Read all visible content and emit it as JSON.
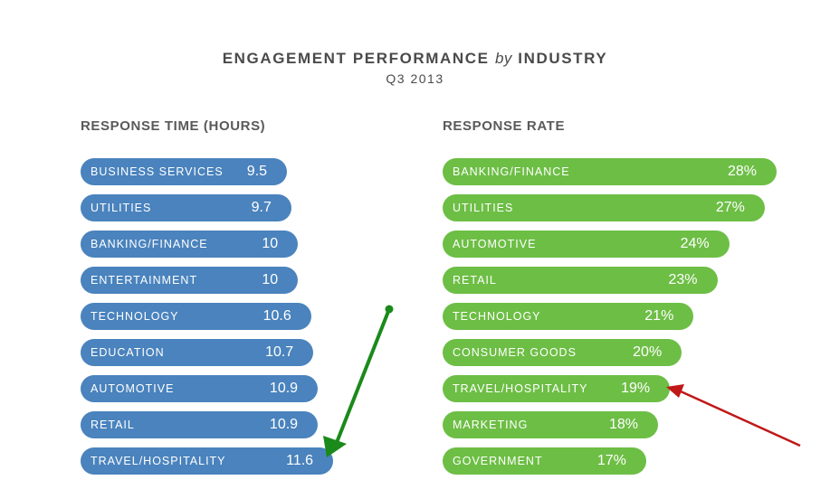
{
  "chart_data": [
    {
      "type": "bar",
      "orientation": "horizontal",
      "title": "ENGAGEMENT PERFORMANCE by INDUSTRY",
      "subtitle": "Q3 2013",
      "panel_title": "RESPONSE TIME (HOURS)",
      "color": "#4a83bd",
      "categories": [
        "BUSINESS SERVICES",
        "UTILITIES",
        "BANKING/FINANCE",
        "ENTERTAINMENT",
        "TECHNOLOGY",
        "EDUCATION",
        "AUTOMOTIVE",
        "RETAIL",
        "TRAVEL/HOSPITALITY"
      ],
      "values": [
        9.5,
        9.7,
        10,
        10,
        10.6,
        10.7,
        10.9,
        10.9,
        11.6
      ],
      "value_labels": [
        "9.5",
        "9.7",
        "10",
        "10",
        "10.6",
        "10.7",
        "10.9",
        "10.9",
        "11.6"
      ],
      "highlight": {
        "category": "TRAVEL/HOSPITALITY",
        "annotation": "green-arrow",
        "color": "#1a8a1a"
      }
    },
    {
      "type": "bar",
      "orientation": "horizontal",
      "panel_title": "RESPONSE RATE",
      "color": "#6dbe45",
      "categories": [
        "BANKING/FINANCE",
        "UTILITIES",
        "AUTOMOTIVE",
        "RETAIL",
        "TECHNOLOGY",
        "CONSUMER GOODS",
        "TRAVEL/HOSPITALITY",
        "MARKETING",
        "GOVERNMENT"
      ],
      "values": [
        28,
        27,
        24,
        23,
        21,
        20,
        19,
        18,
        17
      ],
      "value_labels": [
        "28%",
        "27%",
        "24%",
        "23%",
        "21%",
        "20%",
        "19%",
        "18%",
        "17%"
      ],
      "unit": "%",
      "highlight": {
        "category": "TRAVEL/HOSPITALITY",
        "annotation": "red-arrow",
        "color": "#c01818"
      }
    }
  ],
  "header": {
    "title_main": "ENGAGEMENT PERFORMANCE",
    "title_by": "by",
    "title_end": "INDUSTRY",
    "subtitle": "Q3 2013"
  }
}
